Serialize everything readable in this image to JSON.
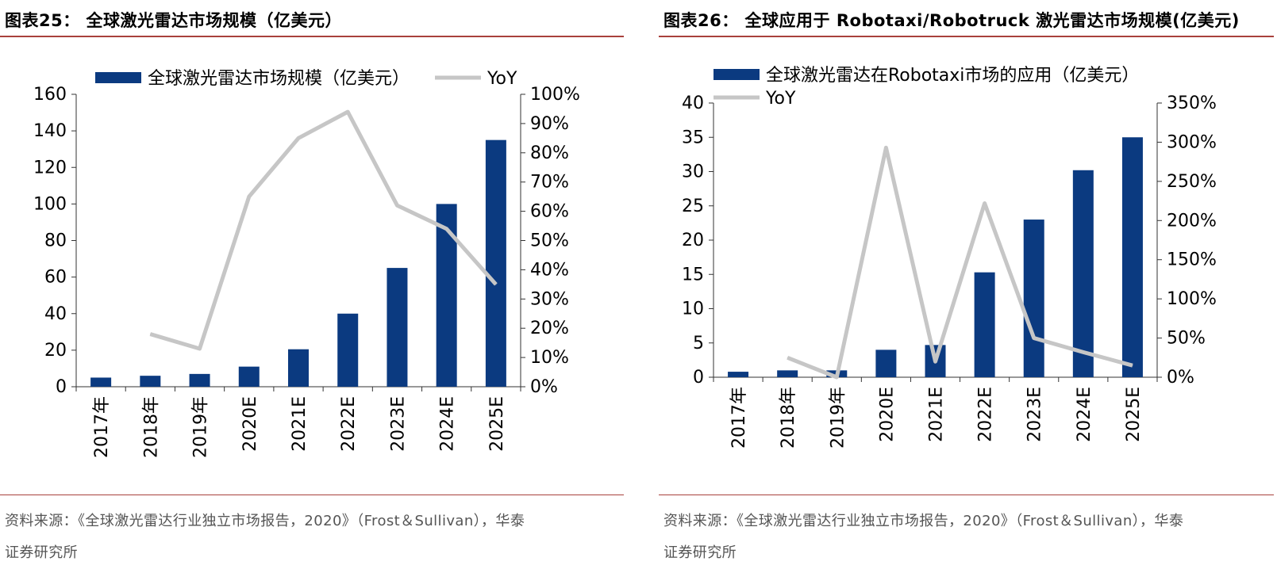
{
  "colors": {
    "bar": "#0b3a80",
    "line": "#c6c6c6",
    "rule": "#a8403c"
  },
  "panels": [
    {
      "figure_title": "图表25：  全球激光雷达市场规模（亿美元）",
      "source_line1": "资料来源：《全球激光雷达行业独立市场报告，2020》（Frost＆Sullivan），华泰",
      "source_line2": "证券研究所"
    },
    {
      "figure_title": "图表26：  全球应用于 Robotaxi/Robotruck 激光雷达市场规模(亿美元)",
      "source_line1": "资料来源：《全球激光雷达行业独立市场报告，2020》（Frost＆Sullivan），华泰",
      "source_line2": "证券研究所"
    }
  ],
  "chart_data": [
    {
      "type": "bar",
      "title": "",
      "categories": [
        "2017年",
        "2018年",
        "2019年",
        "2020E",
        "2021E",
        "2022E",
        "2023E",
        "2024E",
        "2025E"
      ],
      "series": [
        {
          "name": "全球激光雷达市场规模（亿美元）",
          "type": "bar",
          "axis": "left",
          "values": [
            5,
            6,
            7,
            11,
            20.5,
            40,
            65,
            100,
            135
          ]
        },
        {
          "name": "YoY",
          "type": "line",
          "axis": "right",
          "values": [
            null,
            18,
            13,
            65,
            85,
            94,
            62,
            54,
            35
          ]
        }
      ],
      "y_left": {
        "min": 0,
        "max": 160,
        "step": 20,
        "ticks": [
          "0",
          "20",
          "40",
          "60",
          "80",
          "100",
          "120",
          "140",
          "160"
        ]
      },
      "y_right": {
        "min": 0,
        "max": 100,
        "step": 10,
        "unit": "%",
        "ticks": [
          "0%",
          "10%",
          "20%",
          "30%",
          "40%",
          "50%",
          "60%",
          "70%",
          "80%",
          "90%",
          "100%"
        ]
      },
      "legend": "top",
      "grid": false
    },
    {
      "type": "bar",
      "title": "",
      "categories": [
        "2017年",
        "2018年",
        "2019年",
        "2020E",
        "2021E",
        "2022E",
        "2023E",
        "2024E",
        "2025E"
      ],
      "series": [
        {
          "name": "全球激光雷达在Robotaxi市场的应用（亿美元）",
          "type": "bar",
          "axis": "left",
          "values": [
            0.8,
            1.0,
            1.0,
            4.0,
            4.7,
            15.3,
            23,
            30.2,
            35
          ]
        },
        {
          "name": "YoY",
          "type": "line",
          "axis": "right",
          "values": [
            null,
            25,
            0,
            293,
            20,
            222,
            50,
            32,
            15
          ]
        }
      ],
      "y_left": {
        "min": 0,
        "max": 40,
        "step": 5,
        "ticks": [
          "0",
          "5",
          "10",
          "15",
          "20",
          "25",
          "30",
          "35",
          "40"
        ]
      },
      "y_right": {
        "min": 0,
        "max": 350,
        "step": 50,
        "unit": "%",
        "ticks": [
          "0%",
          "50%",
          "100%",
          "150%",
          "200%",
          "250%",
          "300%",
          "350%"
        ]
      },
      "legend": "top-left",
      "grid": false
    }
  ]
}
